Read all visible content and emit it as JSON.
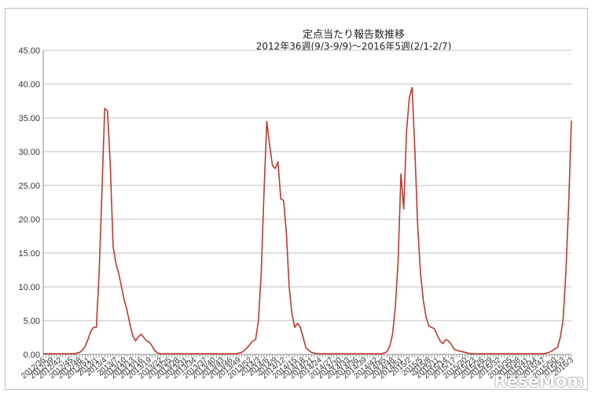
{
  "chart_data": {
    "type": "line",
    "title": "定点当たり報告数推移",
    "subtitle": "2012年36週(9/3-9/9)～2016年5週(2/1-2/7)",
    "ylim": [
      0,
      45
    ],
    "y_ticks": [
      "0.00",
      "5.00",
      "10.00",
      "15.00",
      "20.00",
      "25.00",
      "30.00",
      "35.00",
      "40.00",
      "45.00"
    ],
    "x_tick_labels": [
      "2012/36",
      "2012/39",
      "2012/42",
      "2012/45",
      "2012/48",
      "2012/51",
      "2013/1",
      "2013/4",
      "2013/7",
      "2013/10",
      "2013/13",
      "2013/16",
      "2013/19",
      "2013/22",
      "2013/25",
      "2013/28",
      "2013/31",
      "2013/34",
      "2013/37",
      "2013/40",
      "2013/43",
      "2013/46",
      "2013/49",
      "2013/52",
      "2014/3",
      "2014/6",
      "2014/9",
      "2014/12",
      "2014/15",
      "2014/18",
      "2014/21",
      "2014/24",
      "2014/27",
      "2014/30",
      "2014/33",
      "2014/36",
      "2014/39",
      "2014/42",
      "2014/45",
      "2014/48",
      "2014/51",
      "2015/2",
      "2015/5",
      "2015/8",
      "2015/11",
      "2015/14",
      "2015/17",
      "2015/20",
      "2015/23",
      "2015/26",
      "2015/29",
      "2015/32",
      "2015/35",
      "2015/38",
      "2015/41",
      "2015/44",
      "2015/47",
      "2015/50",
      "2015/53",
      "2016/3"
    ],
    "series": [
      {
        "color": "#c0392b",
        "values": [
          0.1,
          0.1,
          0.1,
          0.1,
          0.1,
          0.1,
          0.1,
          0.1,
          0.1,
          0.1,
          0.1,
          0.1,
          0.2,
          0.3,
          0.6,
          1.2,
          2.2,
          3.4,
          4.0,
          4.0,
          12.0,
          24.0,
          36.4,
          36.0,
          28.0,
          16.0,
          13.5,
          12.0,
          10.0,
          8.0,
          6.5,
          4.5,
          2.8,
          2.0,
          2.6,
          3.0,
          2.5,
          2.0,
          1.8,
          1.2,
          0.5,
          0.2,
          0.1,
          0.1,
          0.1,
          0.1,
          0.1,
          0.1,
          0.1,
          0.1,
          0.1,
          0.1,
          0.1,
          0.1,
          0.1,
          0.1,
          0.1,
          0.1,
          0.1,
          0.1,
          0.1,
          0.1,
          0.1,
          0.1,
          0.1,
          0.1,
          0.1,
          0.1,
          0.1,
          0.1,
          0.2,
          0.3,
          0.6,
          1.0,
          1.5,
          2.0,
          2.2,
          5.0,
          12.0,
          24.0,
          34.5,
          31.0,
          28.0,
          27.5,
          28.5,
          23.0,
          22.8,
          18.0,
          10.0,
          6.0,
          4.0,
          4.6,
          4.0,
          2.5,
          1.0,
          0.6,
          0.3,
          0.2,
          0.1,
          0.1,
          0.1,
          0.1,
          0.1,
          0.1,
          0.1,
          0.1,
          0.1,
          0.1,
          0.1,
          0.1,
          0.1,
          0.1,
          0.1,
          0.1,
          0.1,
          0.1,
          0.1,
          0.1,
          0.1,
          0.1,
          0.1,
          0.1,
          0.2,
          0.4,
          1.2,
          3.0,
          7.0,
          14.0,
          26.7,
          21.5,
          33.0,
          38.0,
          39.5,
          30.0,
          19.0,
          12.0,
          8.0,
          5.5,
          4.2,
          4.0,
          3.8,
          2.8,
          2.0,
          1.6,
          2.2,
          2.0,
          1.5,
          0.8,
          0.6,
          0.5,
          0.4,
          0.3,
          0.2,
          0.1,
          0.1,
          0.1,
          0.1,
          0.1,
          0.1,
          0.1,
          0.1,
          0.1,
          0.1,
          0.1,
          0.1,
          0.1,
          0.1,
          0.1,
          0.1,
          0.1,
          0.1,
          0.1,
          0.1,
          0.1,
          0.1,
          0.1,
          0.1,
          0.1,
          0.1,
          0.1,
          0.2,
          0.3,
          0.5,
          0.8,
          1.0,
          2.5,
          5.0,
          12.0,
          22.0,
          34.6
        ]
      }
    ],
    "grid": true,
    "legend": "none",
    "x_tick_mark_color": "#7f7f7f",
    "gridline_color": "#bfbfbf"
  },
  "watermark": "ReseMom"
}
